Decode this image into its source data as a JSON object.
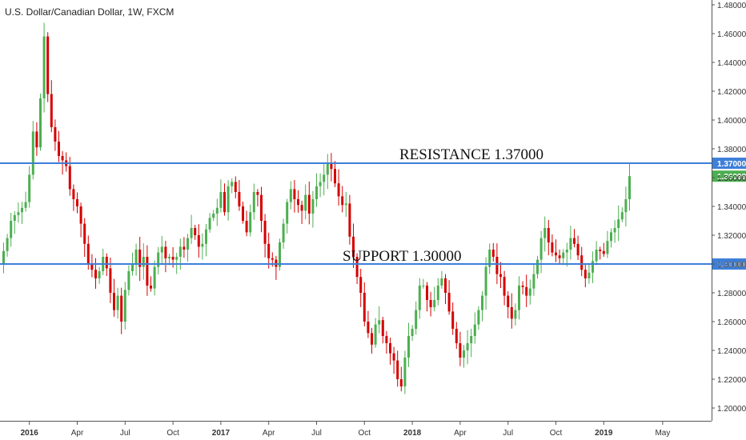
{
  "chart_data": {
    "type": "candlestick",
    "title": "U.S. Dollar/Canadian Dollar, 1W, FXCM",
    "ylim": [
      1.19,
      1.485
    ],
    "y_ticks": [
      "1.48000",
      "1.46000",
      "1.44000",
      "1.42000",
      "1.40000",
      "1.38000",
      "1.36000",
      "1.34000",
      "1.32000",
      "1.30000",
      "1.28000",
      "1.26000",
      "1.24000",
      "1.22000",
      "1.20000"
    ],
    "x_ticks": [
      {
        "label": "2016",
        "bold": true,
        "week": 7
      },
      {
        "label": "Apr",
        "bold": false,
        "week": 20
      },
      {
        "label": "Jul",
        "bold": false,
        "week": 33
      },
      {
        "label": "Oct",
        "bold": false,
        "week": 46
      },
      {
        "label": "2017",
        "bold": true,
        "week": 59
      },
      {
        "label": "Apr",
        "bold": false,
        "week": 72
      },
      {
        "label": "Jul",
        "bold": false,
        "week": 85
      },
      {
        "label": "Oct",
        "bold": false,
        "week": 98
      },
      {
        "label": "2018",
        "bold": true,
        "week": 111
      },
      {
        "label": "Apr",
        "bold": false,
        "week": 124
      },
      {
        "label": "Jul",
        "bold": false,
        "week": 137
      },
      {
        "label": "Oct",
        "bold": false,
        "week": 150
      },
      {
        "label": "2019",
        "bold": true,
        "week": 163
      },
      {
        "label": "May",
        "bold": false,
        "week": 179
      }
    ],
    "levels": [
      {
        "name": "RESISTANCE 1.37000",
        "value": 1.37,
        "badge": "1.37000",
        "color": "#3d7fd9"
      },
      {
        "name": "SUPPORT 1.30000",
        "value": 1.3,
        "badge": "1.30000",
        "color": "#3d7fd9"
      }
    ],
    "last_price": {
      "value": 1.36098,
      "label": "1.36098",
      "color": "#4caf50"
    },
    "up_color": "#4caf50",
    "down_color": "#d50000",
    "closes": [
      1.309,
      1.318,
      1.33,
      1.334,
      1.336,
      1.339,
      1.343,
      1.362,
      1.392,
      1.381,
      1.415,
      1.458,
      1.418,
      1.395,
      1.385,
      1.375,
      1.372,
      1.368,
      1.352,
      1.345,
      1.34,
      1.328,
      1.314,
      1.3,
      1.296,
      1.29,
      1.295,
      1.305,
      1.297,
      1.28,
      1.268,
      1.278,
      1.26,
      1.282,
      1.295,
      1.3,
      1.31,
      1.298,
      1.305,
      1.285,
      1.283,
      1.298,
      1.308,
      1.312,
      1.304,
      1.305,
      1.303,
      1.305,
      1.312,
      1.31,
      1.318,
      1.325,
      1.32,
      1.312,
      1.314,
      1.324,
      1.332,
      1.335,
      1.339,
      1.35,
      1.336,
      1.354,
      1.357,
      1.35,
      1.34,
      1.33,
      1.322,
      1.336,
      1.35,
      1.348,
      1.33,
      1.314,
      1.304,
      1.303,
      1.298,
      1.315,
      1.328,
      1.343,
      1.352,
      1.345,
      1.341,
      1.337,
      1.348,
      1.335,
      1.345,
      1.354,
      1.357,
      1.362,
      1.37,
      1.366,
      1.356,
      1.347,
      1.341,
      1.342,
      1.319,
      1.305,
      1.291,
      1.28,
      1.26,
      1.252,
      1.244,
      1.258,
      1.261,
      1.25,
      1.245,
      1.238,
      1.233,
      1.22,
      1.215,
      1.235,
      1.25,
      1.255,
      1.268,
      1.285,
      1.285,
      1.275,
      1.27,
      1.275,
      1.285,
      1.29,
      1.28,
      1.267,
      1.255,
      1.245,
      1.235,
      1.24,
      1.245,
      1.25,
      1.258,
      1.268,
      1.278,
      1.298,
      1.31,
      1.305,
      1.293,
      1.291,
      1.278,
      1.27,
      1.262,
      1.268,
      1.285,
      1.284,
      1.278,
      1.283,
      1.293,
      1.303,
      1.318,
      1.325,
      1.315,
      1.308,
      1.306,
      1.304,
      1.308,
      1.31,
      1.318,
      1.314,
      1.306,
      1.296,
      1.29,
      1.294,
      1.302,
      1.31,
      1.309,
      1.307,
      1.316,
      1.322,
      1.325,
      1.331,
      1.336,
      1.345,
      1.361
    ]
  }
}
